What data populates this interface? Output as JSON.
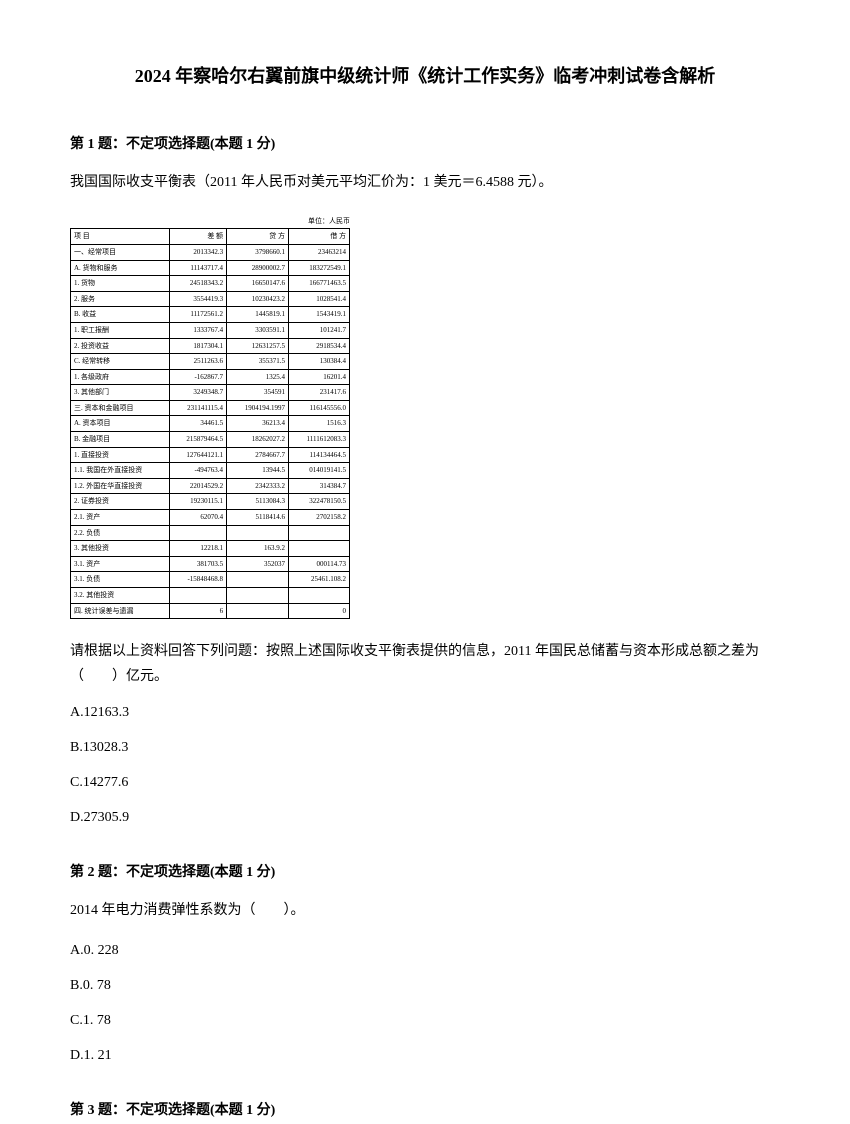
{
  "title": "2024 年察哈尔右翼前旗中级统计师《统计工作实务》临考冲刺试卷含解析",
  "q1": {
    "header": "第 1 题：不定项选择题(本题 1 分)",
    "text": "我国国际收支平衡表（2011 年人民币对美元平均汇价为：1 美元＝6.4588 元）。",
    "tableUnit": "单位：人民币",
    "table": {
      "rows": [
        [
          "项 目",
          "差 额",
          "贷 方",
          "借 方"
        ],
        [
          "一、经常项目",
          "2013342.3",
          "3798660.1",
          "23463214"
        ],
        [
          "A. 货物和服务",
          "11143717.4",
          "28900002.7",
          "183272549.1"
        ],
        [
          "1. 货物",
          "24518343.2",
          "16650147.6",
          "166771463.5"
        ],
        [
          "2. 服务",
          "3554419.3",
          "10230423.2",
          "1028541.4"
        ],
        [
          "B. 收益",
          "11172561.2",
          "1445819.1",
          "1543419.1"
        ],
        [
          "1. 职工报酬",
          "1333767.4",
          "3303591.1",
          "101241.7"
        ],
        [
          "2. 投资收益",
          "1817304.1",
          "12631257.5",
          "2918534.4"
        ],
        [
          "C. 经常转移",
          "2511263.6",
          "355371.5",
          "130384.4"
        ],
        [
          "1. 各级政府",
          "-162867.7",
          "1325.4",
          "16201.4"
        ],
        [
          "3. 其他部门",
          "3249348.7",
          "354591",
          "231417.6"
        ],
        [
          "三. 资本和金融项目",
          "231141115.4",
          "1904194.1997",
          "116145556.0"
        ],
        [
          "A. 资本项目",
          "34461.5",
          "36213.4",
          "1516.3"
        ],
        [
          "B. 金融项目",
          "215879464.5",
          "18262027.2",
          "1111612083.3"
        ],
        [
          "1. 直接投资",
          "127644121.1",
          "2784667.7",
          "114134464.5"
        ],
        [
          "1.1. 我国在外直接投资",
          "-494763.4",
          "13944.5",
          "014019141.5"
        ],
        [
          "1.2. 外国在华直接投资",
          "22014529.2",
          "2342333.2",
          "314384.7"
        ],
        [
          "2. 证券投资",
          "19230115.1",
          "5113084.3",
          "322478150.5"
        ],
        [
          "2.1. 资产",
          "62070.4",
          "5118414.6",
          "2702158.2"
        ],
        [
          "2.2. 负债",
          "",
          "",
          ""
        ],
        [
          "3. 其他投资",
          "12218.1",
          "163.9.2",
          ""
        ],
        [
          "3.1. 资产",
          "381703.5",
          "352037",
          "000114.73"
        ],
        [
          "3.1. 负债",
          "-15848468.8",
          "",
          "25461.108.2"
        ],
        [
          "3.2. 其他投资",
          "",
          "",
          ""
        ],
        [
          "四. 统计误差与遗漏",
          "6",
          "",
          "0"
        ]
      ]
    },
    "subQuestion": "请根据以上资料回答下列问题：按照上述国际收支平衡表提供的信息，2011 年国民总储蓄与资本形成总额之差为（　　）亿元。",
    "optionA": "A.12163.3",
    "optionB": "B.13028.3",
    "optionC": "C.14277.6",
    "optionD": "D.27305.9"
  },
  "q2": {
    "header": "第 2 题：不定项选择题(本题 1 分)",
    "text": "2014 年电力消费弹性系数为（　　）。",
    "optionA": "A.0. 228",
    "optionB": "B.0. 78",
    "optionC": "C.1. 78",
    "optionD": "D.1. 21"
  },
  "q3": {
    "header": "第 3 题：不定项选择题(本题 1 分)"
  }
}
